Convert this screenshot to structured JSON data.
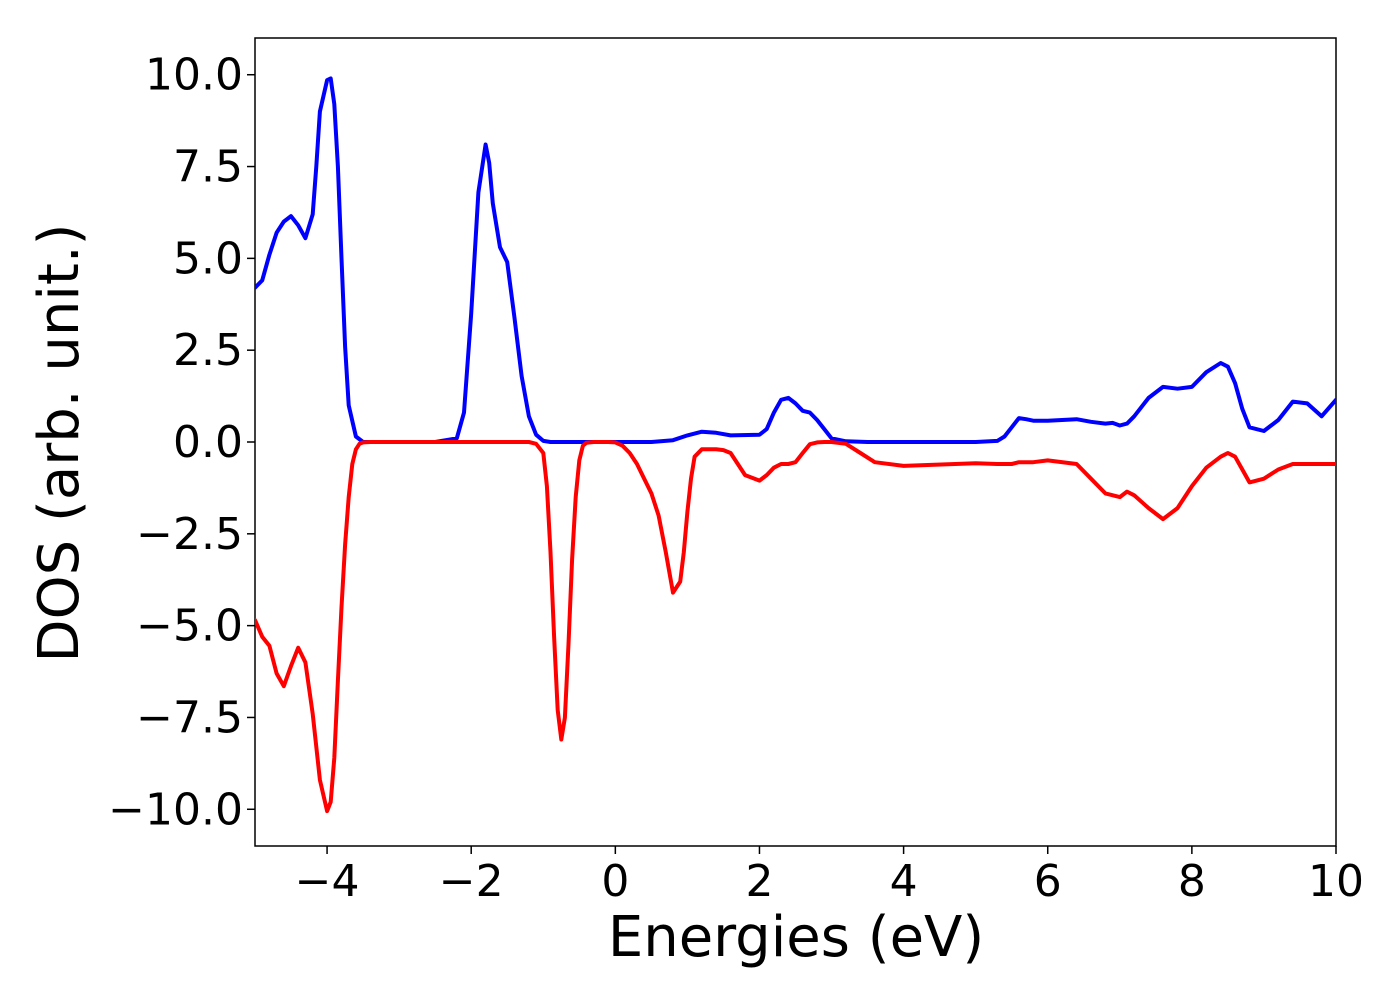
{
  "chart_data": {
    "type": "line",
    "title": "",
    "xlabel": "Energies (eV)",
    "ylabel": "DOS (arb. unit.)",
    "xlim": [
      -5,
      10
    ],
    "ylim": [
      -11,
      11
    ],
    "xticks": [
      -4,
      -2,
      0,
      2,
      4,
      6,
      8,
      10
    ],
    "xtick_labels": [
      "−4",
      "−2",
      "0",
      "2",
      "4",
      "6",
      "8",
      "10"
    ],
    "yticks": [
      10,
      7.5,
      5,
      2.5,
      0,
      -2.5,
      -5,
      -7.5,
      -10
    ],
    "ytick_labels": [
      "10.0",
      "7.5",
      "5.0",
      "2.5",
      "0.0",
      "−2.5",
      "−5.0",
      "−7.5",
      "−10.0"
    ],
    "grid": false,
    "legend": "none",
    "series": [
      {
        "color": "#0000ff",
        "x": [
          -5.0,
          -4.9,
          -4.8,
          -4.7,
          -4.6,
          -4.5,
          -4.4,
          -4.3,
          -4.2,
          -4.15,
          -4.1,
          -4.0,
          -3.95,
          -3.9,
          -3.85,
          -3.8,
          -3.75,
          -3.7,
          -3.6,
          -3.5,
          -3.4,
          -3.3,
          -3.2,
          -3.0,
          -2.5,
          -2.2,
          -2.1,
          -2.0,
          -1.9,
          -1.8,
          -1.75,
          -1.7,
          -1.6,
          -1.5,
          -1.4,
          -1.3,
          -1.2,
          -1.1,
          -1.0,
          -0.9,
          -0.8,
          -0.5,
          0.0,
          0.5,
          0.8,
          1.0,
          1.2,
          1.4,
          1.6,
          2.0,
          2.1,
          2.2,
          2.3,
          2.4,
          2.5,
          2.6,
          2.7,
          2.8,
          2.9,
          3.0,
          3.2,
          3.5,
          4.0,
          5.0,
          5.3,
          5.4,
          5.5,
          5.6,
          5.7,
          5.8,
          6.0,
          6.2,
          6.4,
          6.6,
          6.8,
          6.9,
          7.0,
          7.1,
          7.2,
          7.4,
          7.6,
          7.8,
          8.0,
          8.2,
          8.4,
          8.5,
          8.6,
          8.7,
          8.8,
          9.0,
          9.2,
          9.4,
          9.6,
          9.8,
          10.0
        ],
        "values": [
          4.2,
          4.4,
          5.1,
          5.7,
          6.0,
          6.15,
          5.9,
          5.55,
          6.2,
          7.5,
          9.0,
          9.85,
          9.9,
          9.2,
          7.5,
          5.0,
          2.6,
          1.0,
          0.15,
          0.0,
          0.0,
          0.0,
          0.0,
          0.0,
          0.0,
          0.1,
          0.8,
          3.5,
          6.8,
          8.1,
          7.6,
          6.5,
          5.3,
          4.9,
          3.4,
          1.8,
          0.7,
          0.2,
          0.03,
          0.0,
          0.0,
          0.0,
          0.0,
          0.0,
          0.05,
          0.18,
          0.28,
          0.25,
          0.18,
          0.2,
          0.35,
          0.8,
          1.15,
          1.2,
          1.05,
          0.85,
          0.8,
          0.6,
          0.35,
          0.1,
          0.02,
          0.0,
          0.0,
          0.0,
          0.03,
          0.15,
          0.4,
          0.65,
          0.62,
          0.58,
          0.58,
          0.6,
          0.62,
          0.55,
          0.5,
          0.52,
          0.45,
          0.5,
          0.7,
          1.2,
          1.5,
          1.45,
          1.5,
          1.9,
          2.15,
          2.05,
          1.6,
          0.9,
          0.4,
          0.3,
          0.6,
          1.1,
          1.05,
          0.7,
          1.15
        ]
      },
      {
        "color": "#ff0000",
        "x": [
          -5.0,
          -4.9,
          -4.8,
          -4.7,
          -4.6,
          -4.5,
          -4.4,
          -4.3,
          -4.2,
          -4.1,
          -4.0,
          -3.95,
          -3.9,
          -3.85,
          -3.8,
          -3.75,
          -3.7,
          -3.65,
          -3.6,
          -3.55,
          -3.5,
          -3.4,
          -3.3,
          -3.2,
          -3.0,
          -2.0,
          -1.2,
          -1.1,
          -1.0,
          -0.95,
          -0.9,
          -0.85,
          -0.8,
          -0.75,
          -0.7,
          -0.65,
          -0.6,
          -0.55,
          -0.5,
          -0.45,
          -0.4,
          -0.3,
          -0.2,
          -0.1,
          0.0,
          0.1,
          0.2,
          0.3,
          0.4,
          0.5,
          0.6,
          0.7,
          0.8,
          0.9,
          0.95,
          1.0,
          1.05,
          1.1,
          1.2,
          1.3,
          1.4,
          1.5,
          1.6,
          1.8,
          2.0,
          2.1,
          2.2,
          2.3,
          2.4,
          2.5,
          2.6,
          2.7,
          2.8,
          2.9,
          3.0,
          3.2,
          3.4,
          3.6,
          4.0,
          5.0,
          5.3,
          5.5,
          5.6,
          5.7,
          5.8,
          6.0,
          6.4,
          6.6,
          6.8,
          7.0,
          7.1,
          7.2,
          7.4,
          7.6,
          7.8,
          8.0,
          8.2,
          8.4,
          8.5,
          8.6,
          8.7,
          8.8,
          9.0,
          9.2,
          9.4,
          9.6,
          9.8,
          10.0
        ],
        "values": [
          -4.85,
          -5.3,
          -5.55,
          -6.3,
          -6.65,
          -6.1,
          -5.6,
          -6.0,
          -7.4,
          -9.2,
          -10.05,
          -9.8,
          -8.6,
          -6.5,
          -4.5,
          -2.8,
          -1.5,
          -0.6,
          -0.2,
          -0.05,
          -0.01,
          0.0,
          0.0,
          0.0,
          0.0,
          0.0,
          0.0,
          -0.05,
          -0.3,
          -1.2,
          -3.0,
          -5.3,
          -7.3,
          -8.1,
          -7.5,
          -5.5,
          -3.2,
          -1.5,
          -0.5,
          -0.1,
          -0.02,
          0.0,
          0.0,
          0.0,
          -0.01,
          -0.1,
          -0.3,
          -0.6,
          -1.0,
          -1.4,
          -2.0,
          -3.0,
          -4.1,
          -3.8,
          -3.0,
          -1.9,
          -1.0,
          -0.4,
          -0.2,
          -0.2,
          -0.2,
          -0.22,
          -0.3,
          -0.9,
          -1.05,
          -0.9,
          -0.7,
          -0.6,
          -0.6,
          -0.55,
          -0.3,
          -0.06,
          -0.01,
          0.0,
          0.0,
          -0.05,
          -0.3,
          -0.55,
          -0.65,
          -0.58,
          -0.6,
          -0.6,
          -0.55,
          -0.55,
          -0.55,
          -0.5,
          -0.6,
          -1.0,
          -1.4,
          -1.5,
          -1.35,
          -1.45,
          -1.8,
          -2.1,
          -1.8,
          -1.2,
          -0.7,
          -0.4,
          -0.3,
          -0.4,
          -0.75,
          -1.1,
          -1.0,
          -0.75,
          -0.6,
          -0.6,
          -0.6,
          -0.6
        ]
      }
    ]
  }
}
